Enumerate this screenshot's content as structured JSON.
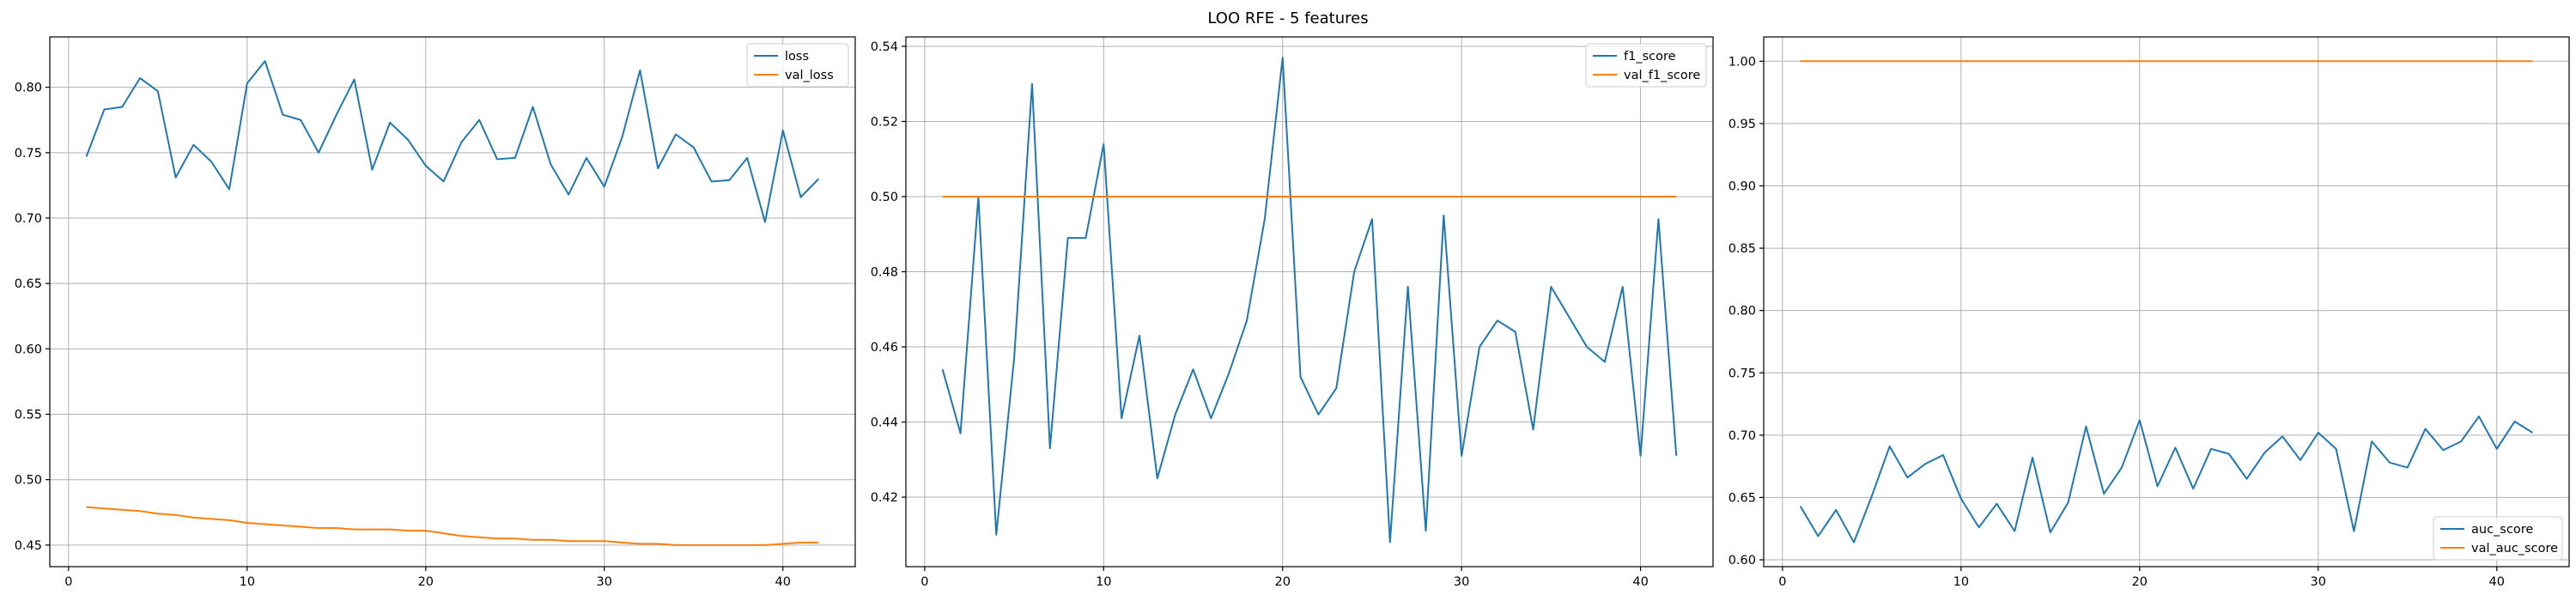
{
  "figure": {
    "title": "LOO RFE - 5 features"
  },
  "colors": {
    "series1": "#1f77b4",
    "series2": "#ff7f0e"
  },
  "chart_data": [
    {
      "type": "line",
      "grid": true,
      "legend_position": "top-right",
      "xlim": [
        -1.05,
        44.05
      ],
      "ylim": [
        0.4335,
        0.8385
      ],
      "xticks": [
        0,
        10,
        20,
        30,
        40
      ],
      "yticks": [
        0.45,
        0.5,
        0.55,
        0.6,
        0.65,
        0.7,
        0.75,
        0.8
      ],
      "ytick_labels": [
        "0.45",
        "0.50",
        "0.55",
        "0.60",
        "0.65",
        "0.70",
        "0.75",
        "0.80"
      ],
      "x": [
        1,
        2,
        3,
        4,
        5,
        6,
        7,
        8,
        9,
        10,
        11,
        12,
        13,
        14,
        15,
        16,
        17,
        18,
        19,
        20,
        21,
        22,
        23,
        24,
        25,
        26,
        27,
        28,
        29,
        30,
        31,
        32,
        33,
        34,
        35,
        36,
        37,
        38,
        39,
        40,
        41,
        42
      ],
      "series": [
        {
          "name": "loss",
          "values": [
            0.747,
            0.783,
            0.785,
            0.807,
            0.797,
            0.731,
            0.756,
            0.743,
            0.722,
            0.803,
            0.82,
            0.779,
            0.775,
            0.75,
            0.779,
            0.806,
            0.737,
            0.773,
            0.76,
            0.74,
            0.728,
            0.758,
            0.775,
            0.745,
            0.746,
            0.785,
            0.741,
            0.718,
            0.746,
            0.724,
            0.762,
            0.813,
            0.738,
            0.764,
            0.754,
            0.728,
            0.729,
            0.746,
            0.697,
            0.767,
            0.716,
            0.73
          ]
        },
        {
          "name": "val_loss",
          "values": [
            0.479,
            0.478,
            0.477,
            0.476,
            0.474,
            0.473,
            0.471,
            0.47,
            0.469,
            0.467,
            0.466,
            0.465,
            0.464,
            0.463,
            0.463,
            0.462,
            0.462,
            0.462,
            0.461,
            0.461,
            0.459,
            0.457,
            0.456,
            0.455,
            0.455,
            0.454,
            0.454,
            0.453,
            0.453,
            0.453,
            0.452,
            0.451,
            0.451,
            0.45,
            0.45,
            0.45,
            0.45,
            0.45,
            0.45,
            0.451,
            0.452,
            0.452
          ]
        }
      ]
    },
    {
      "type": "line",
      "grid": true,
      "legend_position": "top-right",
      "xlim": [
        -1.05,
        44.05
      ],
      "ylim": [
        0.4015,
        0.5425
      ],
      "xticks": [
        0,
        10,
        20,
        30,
        40
      ],
      "yticks": [
        0.42,
        0.44,
        0.46,
        0.48,
        0.5,
        0.52,
        0.54
      ],
      "ytick_labels": [
        "0.42",
        "0.44",
        "0.46",
        "0.48",
        "0.50",
        "0.52",
        "0.54"
      ],
      "x": [
        1,
        2,
        3,
        4,
        5,
        6,
        7,
        8,
        9,
        10,
        11,
        12,
        13,
        14,
        15,
        16,
        17,
        18,
        19,
        20,
        21,
        22,
        23,
        24,
        25,
        26,
        27,
        28,
        29,
        30,
        31,
        32,
        33,
        34,
        35,
        36,
        37,
        38,
        39,
        40,
        41,
        42
      ],
      "series": [
        {
          "name": "f1_score",
          "values": [
            0.454,
            0.437,
            0.5,
            0.41,
            0.457,
            0.53,
            0.433,
            0.489,
            0.489,
            0.514,
            0.441,
            0.463,
            0.425,
            0.442,
            0.454,
            0.441,
            0.453,
            0.467,
            0.494,
            0.537,
            0.452,
            0.442,
            0.449,
            0.48,
            0.494,
            0.408,
            0.476,
            0.411,
            0.495,
            0.431,
            0.46,
            0.467,
            0.464,
            0.438,
            0.476,
            0.468,
            0.46,
            0.456,
            0.476,
            0.431,
            0.494,
            0.431
          ]
        },
        {
          "name": "val_f1_score",
          "values": [
            0.5,
            0.5,
            0.5,
            0.5,
            0.5,
            0.5,
            0.5,
            0.5,
            0.5,
            0.5,
            0.5,
            0.5,
            0.5,
            0.5,
            0.5,
            0.5,
            0.5,
            0.5,
            0.5,
            0.5,
            0.5,
            0.5,
            0.5,
            0.5,
            0.5,
            0.5,
            0.5,
            0.5,
            0.5,
            0.5,
            0.5,
            0.5,
            0.5,
            0.5,
            0.5,
            0.5,
            0.5,
            0.5,
            0.5,
            0.5,
            0.5,
            0.5
          ]
        }
      ]
    },
    {
      "type": "line",
      "grid": true,
      "legend_position": "bottom-right",
      "xlim": [
        -1.05,
        44.05
      ],
      "ylim": [
        0.5945,
        1.0195
      ],
      "xticks": [
        0,
        10,
        20,
        30,
        40
      ],
      "yticks": [
        0.6,
        0.65,
        0.7,
        0.75,
        0.8,
        0.85,
        0.9,
        0.95,
        1.0
      ],
      "ytick_labels": [
        "0.60",
        "0.65",
        "0.70",
        "0.75",
        "0.80",
        "0.85",
        "0.90",
        "0.95",
        "1.00"
      ],
      "x": [
        1,
        2,
        3,
        4,
        5,
        6,
        7,
        8,
        9,
        10,
        11,
        12,
        13,
        14,
        15,
        16,
        17,
        18,
        19,
        20,
        21,
        22,
        23,
        24,
        25,
        26,
        27,
        28,
        29,
        30,
        31,
        32,
        33,
        34,
        35,
        36,
        37,
        38,
        39,
        40,
        41,
        42
      ],
      "series": [
        {
          "name": "auc_score",
          "values": [
            0.643,
            0.619,
            0.64,
            0.614,
            0.651,
            0.691,
            0.666,
            0.677,
            0.684,
            0.649,
            0.626,
            0.645,
            0.623,
            0.682,
            0.622,
            0.646,
            0.707,
            0.653,
            0.674,
            0.712,
            0.659,
            0.69,
            0.657,
            0.689,
            0.685,
            0.665,
            0.686,
            0.699,
            0.68,
            0.702,
            0.689,
            0.623,
            0.695,
            0.678,
            0.674,
            0.705,
            0.688,
            0.695,
            0.715,
            0.689,
            0.711,
            0.702
          ]
        },
        {
          "name": "val_auc_score",
          "values": [
            1.0,
            1.0,
            1.0,
            1.0,
            1.0,
            1.0,
            1.0,
            1.0,
            1.0,
            1.0,
            1.0,
            1.0,
            1.0,
            1.0,
            1.0,
            1.0,
            1.0,
            1.0,
            1.0,
            1.0,
            1.0,
            1.0,
            1.0,
            1.0,
            1.0,
            1.0,
            1.0,
            1.0,
            1.0,
            1.0,
            1.0,
            1.0,
            1.0,
            1.0,
            1.0,
            1.0,
            1.0,
            1.0,
            1.0,
            1.0,
            1.0,
            1.0
          ]
        }
      ]
    }
  ]
}
